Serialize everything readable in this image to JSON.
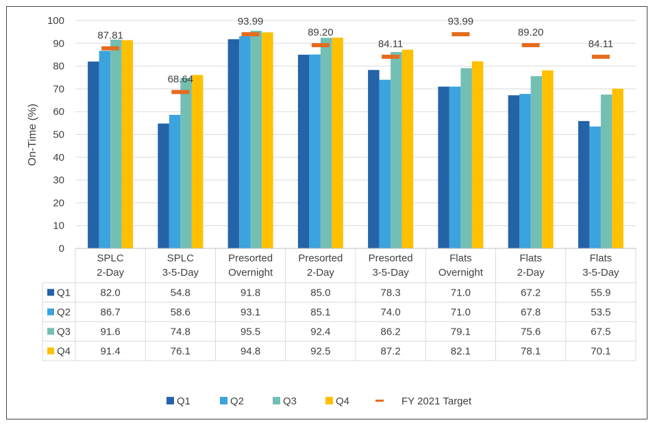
{
  "chart_data": {
    "type": "bar",
    "title": "",
    "xlabel": "",
    "ylabel": "On-Time (%)",
    "ylim": [
      0,
      100
    ],
    "yticks": [
      0,
      10,
      20,
      30,
      40,
      50,
      60,
      70,
      80,
      90,
      100
    ],
    "grid": true,
    "legend_position": "bottom",
    "categories": [
      [
        "SPLC",
        "2-Day"
      ],
      [
        "SPLC",
        "3-5-Day"
      ],
      [
        "Presorted",
        "Overnight"
      ],
      [
        "Presorted",
        "2-Day"
      ],
      [
        "Presorted",
        "3-5-Day"
      ],
      [
        "Flats",
        "Overnight"
      ],
      [
        "Flats",
        "2-Day"
      ],
      [
        "Flats",
        "3-5-Day"
      ]
    ],
    "series": [
      {
        "name": "Q1",
        "color": "#2563A8",
        "values": [
          82.0,
          54.8,
          91.8,
          85.0,
          78.3,
          71.0,
          67.2,
          55.9
        ],
        "labels": [
          "82.0",
          "54.8",
          "91.8",
          "85.0",
          "78.3",
          "71.0",
          "67.2",
          "55.9"
        ]
      },
      {
        "name": "Q2",
        "color": "#3BA3DD",
        "values": [
          86.7,
          58.6,
          93.1,
          85.1,
          74.0,
          71.0,
          67.8,
          53.5
        ],
        "labels": [
          "86.7",
          "58.6",
          "93.1",
          "85.1",
          "74.0",
          "71.0",
          "67.8",
          "53.5"
        ]
      },
      {
        "name": "Q3",
        "color": "#74BFB4",
        "values": [
          91.6,
          74.8,
          95.5,
          92.4,
          86.2,
          79.1,
          75.6,
          67.5
        ],
        "labels": [
          "91.6",
          "74.8",
          "95.5",
          "92.4",
          "86.2",
          "79.1",
          "75.6",
          "67.5"
        ]
      },
      {
        "name": "Q4",
        "color": "#FFC000",
        "values": [
          91.4,
          76.1,
          94.8,
          92.5,
          87.2,
          82.1,
          78.1,
          70.1
        ],
        "labels": [
          "91.4",
          "76.1",
          "94.8",
          "92.5",
          "87.2",
          "82.1",
          "78.1",
          "70.1"
        ]
      }
    ],
    "target": {
      "name": "FY 2021 Target",
      "color": "#E46C1E",
      "values": [
        87.81,
        68.64,
        93.99,
        89.2,
        84.11,
        93.99,
        89.2,
        84.11
      ],
      "labels": [
        "87.81",
        "68.64",
        "93.99",
        "89.20",
        "84.11",
        "93.99",
        "89.20",
        "84.11"
      ]
    }
  }
}
